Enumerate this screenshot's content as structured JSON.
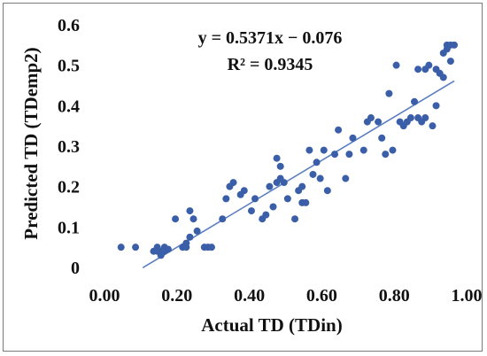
{
  "chart_data": {
    "type": "scatter",
    "title": "",
    "xlabel": "Actual TD (TDin)",
    "ylabel": "Predicted TD (TDemp2)",
    "xlim": [
      0.0,
      1.0
    ],
    "ylim": [
      0.0,
      0.6
    ],
    "x_ticks": [
      "0.00",
      "0.20",
      "0.40",
      "0.60",
      "0.80",
      "1.00"
    ],
    "y_ticks": [
      "0",
      "0.1",
      "0.2",
      "0.3",
      "0.4",
      "0.5",
      "0.6"
    ],
    "grid": false,
    "legend": "none",
    "colors": {
      "points": "#3b5ea8",
      "trendline": "#5b7fc0",
      "frame": "#7a7a7a"
    },
    "trendline": {
      "slope": 0.5371,
      "intercept": -0.076,
      "x_range": [
        0.14,
        1.0
      ],
      "equation_label": "y = 0.5371x − 0.076",
      "r2_label": "R² = 0.9345"
    },
    "series": [
      {
        "points": [
          [
            0.08,
            0.05
          ],
          [
            0.12,
            0.05
          ],
          [
            0.17,
            0.04
          ],
          [
            0.18,
            0.05
          ],
          [
            0.18,
            0.04
          ],
          [
            0.19,
            0.04
          ],
          [
            0.2,
            0.05
          ],
          [
            0.21,
            0.045
          ],
          [
            0.19,
            0.03
          ],
          [
            0.2,
            0.04
          ],
          [
            0.23,
            0.12
          ],
          [
            0.25,
            0.05
          ],
          [
            0.26,
            0.05
          ],
          [
            0.26,
            0.06
          ],
          [
            0.27,
            0.14
          ],
          [
            0.27,
            0.075
          ],
          [
            0.28,
            0.12
          ],
          [
            0.29,
            0.09
          ],
          [
            0.31,
            0.05
          ],
          [
            0.32,
            0.05
          ],
          [
            0.33,
            0.05
          ],
          [
            0.36,
            0.12
          ],
          [
            0.37,
            0.17
          ],
          [
            0.38,
            0.2
          ],
          [
            0.39,
            0.21
          ],
          [
            0.41,
            0.18
          ],
          [
            0.42,
            0.19
          ],
          [
            0.44,
            0.14
          ],
          [
            0.45,
            0.17
          ],
          [
            0.47,
            0.12
          ],
          [
            0.48,
            0.13
          ],
          [
            0.49,
            0.2
          ],
          [
            0.5,
            0.15
          ],
          [
            0.51,
            0.21
          ],
          [
            0.51,
            0.27
          ],
          [
            0.52,
            0.25
          ],
          [
            0.52,
            0.22
          ],
          [
            0.53,
            0.21
          ],
          [
            0.54,
            0.17
          ],
          [
            0.56,
            0.12
          ],
          [
            0.57,
            0.19
          ],
          [
            0.58,
            0.2
          ],
          [
            0.58,
            0.16
          ],
          [
            0.59,
            0.16
          ],
          [
            0.6,
            0.29
          ],
          [
            0.61,
            0.23
          ],
          [
            0.62,
            0.26
          ],
          [
            0.63,
            0.22
          ],
          [
            0.64,
            0.29
          ],
          [
            0.65,
            0.19
          ],
          [
            0.67,
            0.28
          ],
          [
            0.68,
            0.34
          ],
          [
            0.7,
            0.22
          ],
          [
            0.71,
            0.28
          ],
          [
            0.72,
            0.32
          ],
          [
            0.75,
            0.29
          ],
          [
            0.76,
            0.36
          ],
          [
            0.77,
            0.37
          ],
          [
            0.79,
            0.36
          ],
          [
            0.8,
            0.32
          ],
          [
            0.81,
            0.28
          ],
          [
            0.82,
            0.43
          ],
          [
            0.83,
            0.29
          ],
          [
            0.84,
            0.5
          ],
          [
            0.85,
            0.36
          ],
          [
            0.86,
            0.35
          ],
          [
            0.87,
            0.36
          ],
          [
            0.88,
            0.37
          ],
          [
            0.89,
            0.41
          ],
          [
            0.9,
            0.37
          ],
          [
            0.9,
            0.49
          ],
          [
            0.91,
            0.36
          ],
          [
            0.92,
            0.37
          ],
          [
            0.92,
            0.49
          ],
          [
            0.93,
            0.5
          ],
          [
            0.94,
            0.35
          ],
          [
            0.95,
            0.4
          ],
          [
            0.95,
            0.49
          ],
          [
            0.96,
            0.48
          ],
          [
            0.97,
            0.47
          ],
          [
            0.97,
            0.53
          ],
          [
            0.98,
            0.55
          ],
          [
            0.98,
            0.54
          ],
          [
            0.99,
            0.55
          ],
          [
            0.99,
            0.51
          ],
          [
            1.0,
            0.55
          ]
        ]
      }
    ]
  }
}
